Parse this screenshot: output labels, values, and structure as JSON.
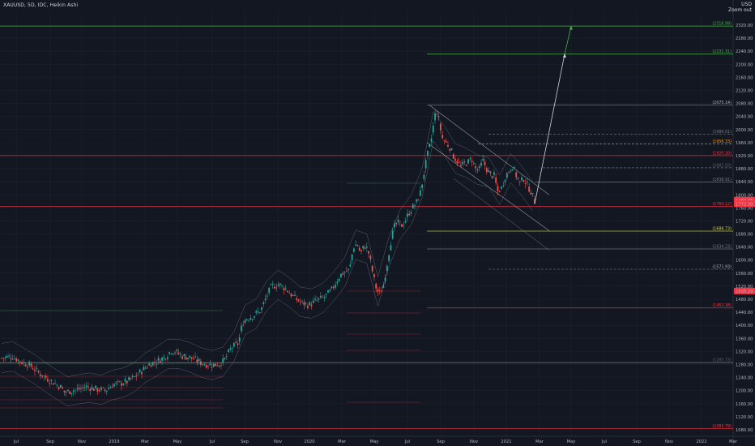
{
  "header": {
    "symbol_line": "XAUUSD, 5D, IDC, Heikin Ashi",
    "currency": "USD",
    "scale_mode": "Zoom out"
  },
  "colors": {
    "background": "#131722",
    "grid": "#1e222d",
    "up_candle": "#26a69a",
    "down_candle": "#ef5350",
    "green_line": "#4caf50",
    "red_line": "#f23645",
    "grey_line": "#787b86",
    "yellow_line": "#d4d440",
    "white_line": "#d1d4dc",
    "price_tag_bg": "#f23645"
  },
  "chart_data": {
    "type": "candlestick",
    "title": "XAUUSD, 5D, IDC, Heikin Ashi",
    "y_axis_label": "USD",
    "ylim": [
      1060,
      2340
    ],
    "y_ticks": [
      1080,
      1120,
      1160,
      1200,
      1240,
      1280,
      1320,
      1360,
      1400,
      1440,
      1480,
      1520,
      1560,
      1600,
      1640,
      1680,
      1720,
      1760,
      1800,
      1840,
      1880,
      1920,
      1960,
      2000,
      2040,
      2080,
      2120,
      2160,
      2200,
      2240,
      2280,
      2320
    ],
    "x_ticks": [
      "Jul",
      "Sep",
      "Nov",
      "2019",
      "Mar",
      "May",
      "Jul",
      "Sep",
      "Nov",
      "2020",
      "Mar",
      "May",
      "Jul",
      "Sep",
      "Nov",
      "2021",
      "Mar",
      "May",
      "Jul",
      "Sep",
      "Nov",
      "2022",
      "Mar"
    ],
    "price_path": [
      [
        0,
        1300
      ],
      [
        3,
        1305
      ],
      [
        5,
        1290
      ],
      [
        8,
        1275
      ],
      [
        10,
        1255
      ],
      [
        12,
        1240
      ],
      [
        14,
        1225
      ],
      [
        16,
        1210
      ],
      [
        17,
        1195
      ],
      [
        19,
        1200
      ],
      [
        21,
        1205
      ],
      [
        23,
        1212
      ],
      [
        25,
        1206
      ],
      [
        28,
        1200
      ],
      [
        30,
        1218
      ],
      [
        32,
        1222
      ],
      [
        34,
        1228
      ],
      [
        36,
        1242
      ],
      [
        38,
        1262
      ],
      [
        40,
        1282
      ],
      [
        42,
        1290
      ],
      [
        44,
        1302
      ],
      [
        46,
        1325
      ],
      [
        47,
        1318
      ],
      [
        49,
        1305
      ],
      [
        51,
        1302
      ],
      [
        53,
        1290
      ],
      [
        55,
        1282
      ],
      [
        57,
        1278
      ],
      [
        59,
        1284
      ],
      [
        60,
        1290
      ],
      [
        62,
        1330
      ],
      [
        64,
        1345
      ],
      [
        65,
        1405
      ],
      [
        66,
        1420
      ],
      [
        68,
        1430
      ],
      [
        70,
        1445
      ],
      [
        72,
        1500
      ],
      [
        73,
        1520
      ],
      [
        75,
        1525
      ],
      [
        77,
        1510
      ],
      [
        79,
        1485
      ],
      [
        81,
        1470
      ],
      [
        83,
        1462
      ],
      [
        85,
        1475
      ],
      [
        87,
        1485
      ],
      [
        89,
        1505
      ],
      [
        91,
        1545
      ],
      [
        92,
        1560
      ],
      [
        94,
        1570
      ],
      [
        95,
        1640
      ],
      [
        96,
        1650
      ],
      [
        97,
        1620
      ],
      [
        98,
        1645
      ],
      [
        99,
        1630
      ],
      [
        100,
        1575
      ],
      [
        101,
        1520
      ],
      [
        102,
        1495
      ],
      [
        103,
        1515
      ],
      [
        104,
        1580
      ],
      [
        105,
        1650
      ],
      [
        106,
        1700
      ],
      [
        107,
        1715
      ],
      [
        108,
        1705
      ],
      [
        109,
        1720
      ],
      [
        110,
        1745
      ],
      [
        111,
        1760
      ],
      [
        112,
        1775
      ],
      [
        113,
        1800
      ],
      [
        114,
        1860
      ],
      [
        115,
        1920
      ],
      [
        116,
        1965
      ],
      [
        117,
        2040
      ],
      [
        117.5,
        2060
      ],
      [
        118,
        2035
      ],
      [
        119,
        1975
      ],
      [
        120,
        1960
      ],
      [
        121,
        1948
      ],
      [
        122,
        1920
      ],
      [
        123,
        1905
      ],
      [
        124,
        1885
      ],
      [
        125,
        1895
      ],
      [
        126,
        1900
      ],
      [
        127,
        1910
      ],
      [
        128,
        1880
      ],
      [
        129,
        1875
      ],
      [
        130,
        1905
      ],
      [
        131,
        1880
      ],
      [
        132,
        1860
      ],
      [
        133,
        1860
      ],
      [
        134,
        1810
      ],
      [
        135,
        1820
      ],
      [
        136,
        1855
      ],
      [
        137,
        1872
      ],
      [
        138,
        1890
      ],
      [
        139,
        1860
      ],
      [
        140,
        1835
      ],
      [
        141,
        1850
      ],
      [
        142,
        1830
      ],
      [
        143,
        1810
      ],
      [
        144,
        1780
      ]
    ],
    "horizontal_levels": [
      {
        "label": "2316.99",
        "value": 2316.99,
        "color": "green",
        "style": "solid",
        "label_color": "#4caf50"
      },
      {
        "label": "2231.31",
        "value": 2231.31,
        "color": "green",
        "style": "solid",
        "label_color": "#4caf50"
      },
      {
        "label": "2075.14",
        "value": 2075.14,
        "color": "grey",
        "style": "solid",
        "label_color": "#b2b5be"
      },
      {
        "label": "1986.01",
        "value": 1986.01,
        "color": "grey",
        "style": "dashed",
        "label_color": "#787b86"
      },
      {
        "label": "1956.33",
        "value": 1956.33,
        "color": "orange",
        "style": "dashed",
        "label_color": "#ff9800"
      },
      {
        "label": "1920.30",
        "value": 1920.3,
        "color": "red",
        "style": "solid",
        "label_color": "#f23645"
      },
      {
        "label": "1882.93",
        "value": 1882.93,
        "color": "grey",
        "style": "dashed",
        "label_color": "#5d606b"
      },
      {
        "label": "1838.91",
        "value": 1838.91,
        "color": "grey",
        "style": "solid",
        "label_color": "#787b86"
      },
      {
        "label": "1764.12",
        "value": 1764.12,
        "color": "red",
        "style": "solid",
        "label_color": "#f23645"
      },
      {
        "label": "1688.73",
        "value": 1688.73,
        "color": "yellow",
        "style": "solid",
        "label_color": "#d4d440"
      },
      {
        "label": "1634.23",
        "value": 1634.23,
        "color": "grey",
        "style": "solid",
        "label_color": "#787b86"
      },
      {
        "label": "1571.93",
        "value": 1571.93,
        "color": "grey",
        "style": "dashed",
        "label_color": "#b2b5be"
      },
      {
        "label": "1453.38",
        "value": 1453.38,
        "color": "red",
        "style": "solid",
        "label_color": "#f23645"
      },
      {
        "label": "1285.73",
        "value": 1285.73,
        "color": "grey",
        "style": "solid",
        "label_color": "#5d606b"
      },
      {
        "label": "1083.79",
        "value": 1083.79,
        "color": "red",
        "style": "solid",
        "label_color": "#f23645"
      }
    ],
    "price_tags": [
      {
        "label": "1783.75",
        "value": 1783.75
      },
      {
        "label": "1772.39",
        "value": 1772.39
      },
      {
        "label": "1505.29",
        "value": 1505.29
      }
    ]
  }
}
